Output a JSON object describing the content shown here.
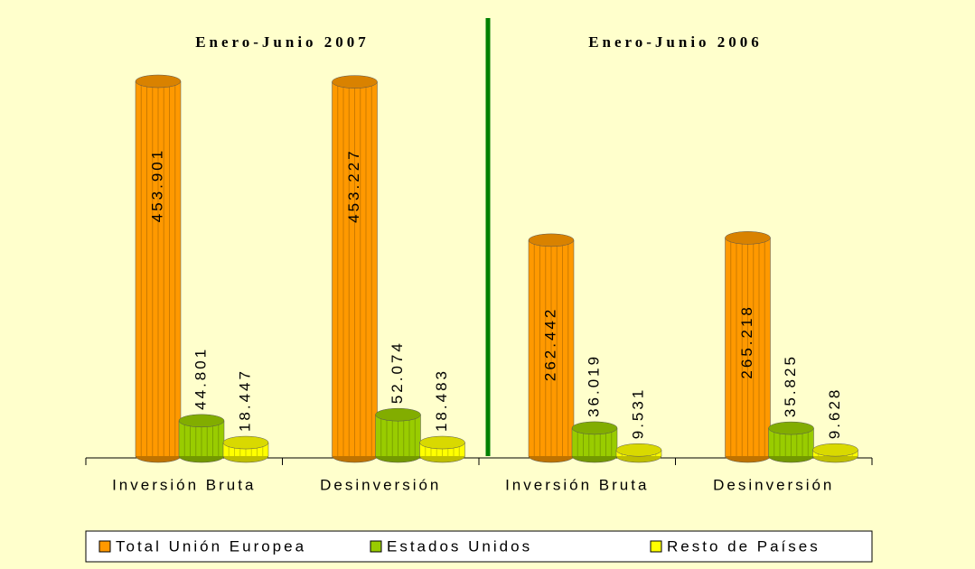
{
  "chart_data": {
    "type": "bar",
    "group_titles": [
      "Enero-Junio 2007",
      "Enero-Junio 2006"
    ],
    "categories": [
      "Inversión Bruta",
      "Desinversión",
      "Inversión Bruta",
      "Desinversión"
    ],
    "series": [
      {
        "name": "Total Unión Europea",
        "color": "#ff9900",
        "values": [
          453901,
          453227,
          262442,
          265218
        ],
        "value_labels": [
          "453.901",
          "453.227",
          "262.442",
          "265.218"
        ]
      },
      {
        "name": "Estados Unidos",
        "color": "#99cc00",
        "values": [
          44801,
          52074,
          36019,
          35825
        ],
        "value_labels": [
          "44.801",
          "52.074",
          "36.019",
          "35.825"
        ]
      },
      {
        "name": "Resto de Países",
        "color": "#ffff00",
        "values": [
          18447,
          18483,
          9531,
          9628
        ],
        "value_labels": [
          "18.447",
          "18.483",
          "9.531",
          "9.628"
        ]
      }
    ]
  }
}
